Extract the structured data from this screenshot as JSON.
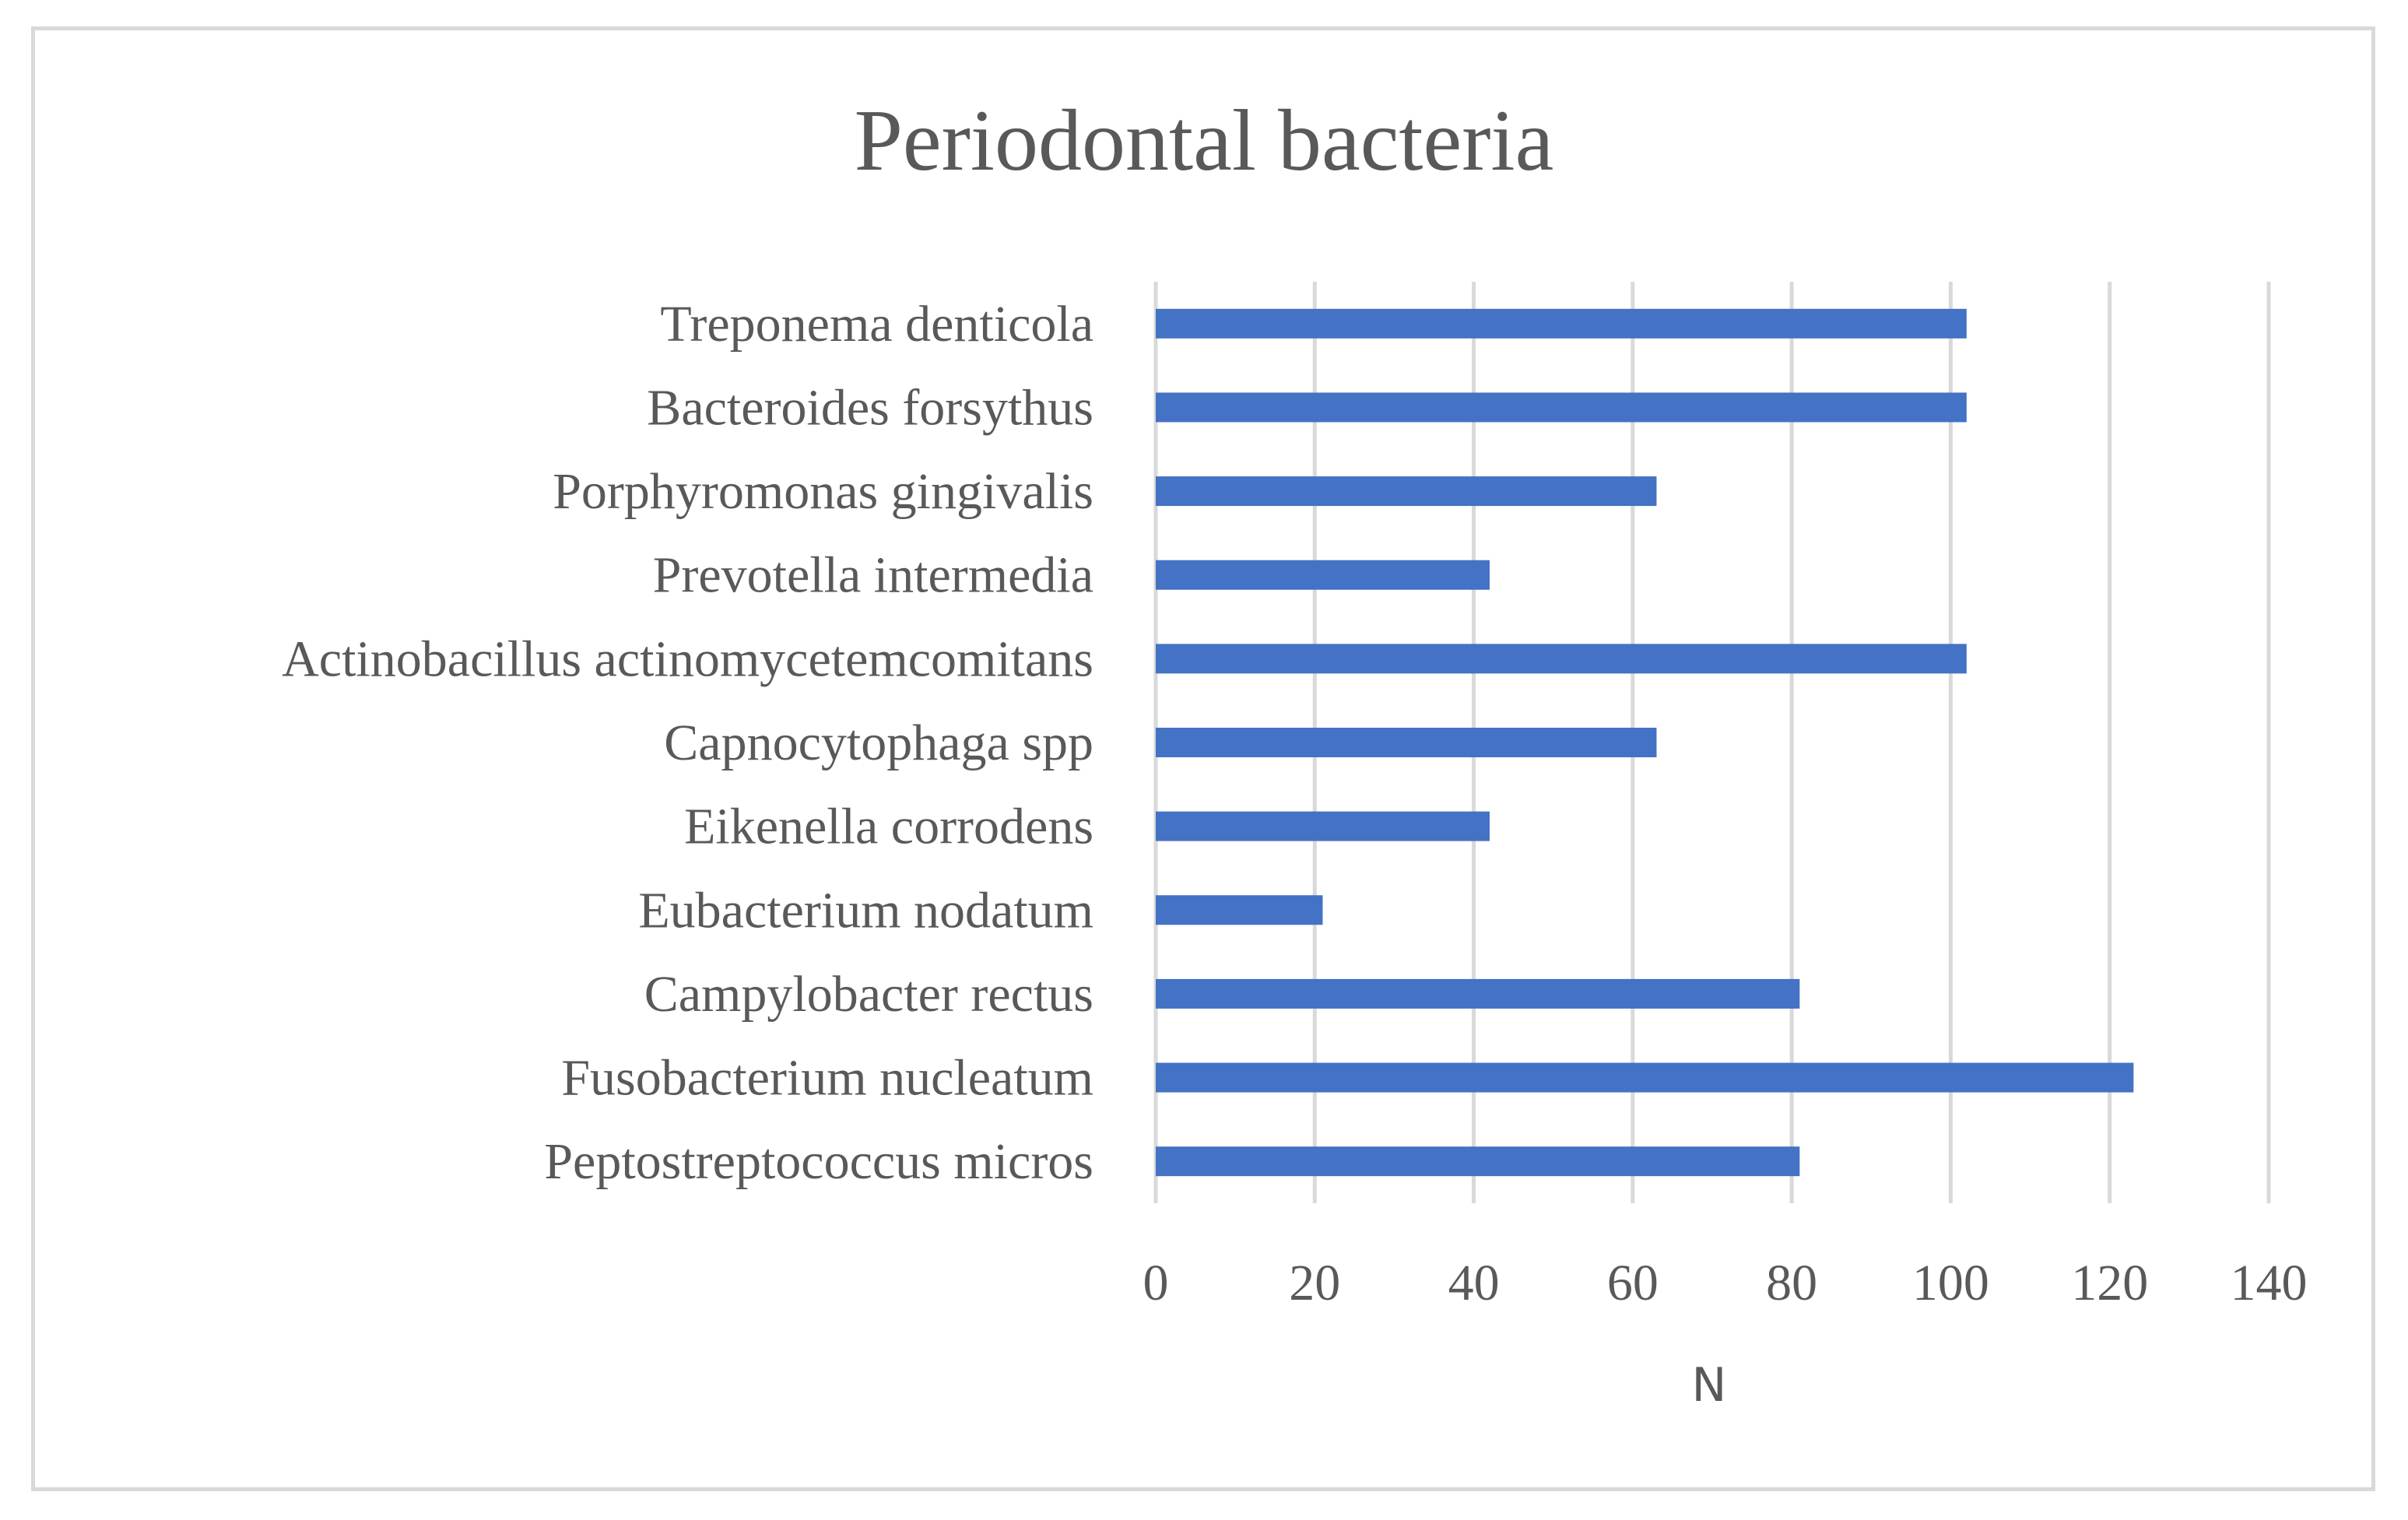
{
  "chart_data": {
    "type": "bar",
    "orientation": "horizontal",
    "title": "Periodontal bacteria",
    "xlabel": "N",
    "ylabel": "",
    "categories": [
      "Treponema denticola",
      "Bacteroides forsythus",
      "Porphyromonas gingivalis",
      "Prevotella intermedia",
      "Actinobacillus actinomycetemcomitans",
      "Capnocytophaga spp",
      "Eikenella corrodens",
      "Eubacterium nodatum",
      "Campylobacter rectus",
      "Fusobacterium nucleatum",
      "Peptostreptococcus micros"
    ],
    "values": [
      102,
      102,
      63,
      42,
      102,
      63,
      42,
      21,
      81,
      123,
      81
    ],
    "xlim": [
      0,
      140
    ],
    "xticks": [
      0,
      20,
      40,
      60,
      80,
      100,
      120,
      140
    ],
    "grid": "vertical",
    "legend": "none",
    "bar_color": "#4472c4",
    "grid_color": "#d9d9d9",
    "text_color": "#595959"
  }
}
